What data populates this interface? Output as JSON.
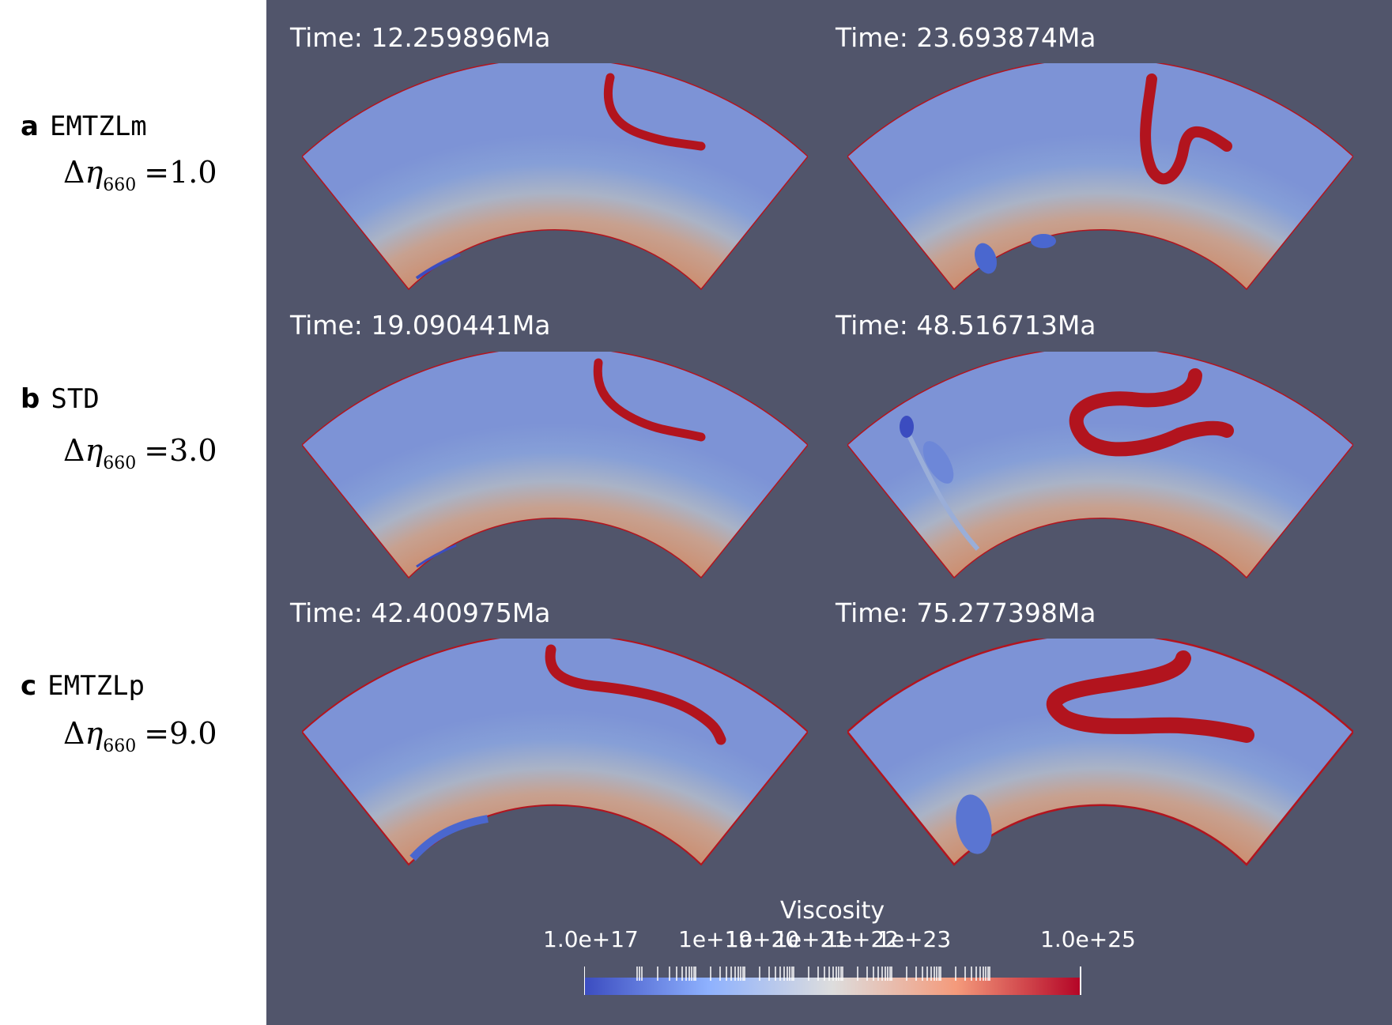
{
  "cases": [
    {
      "letter": "a",
      "name": "EMTZLm",
      "formula": {
        "delta": "Δ",
        "eta": "η",
        "sub": "660",
        "rhs": "=1.0"
      }
    },
    {
      "letter": "b",
      "name": "STD",
      "formula": {
        "delta": "Δ",
        "eta": "η",
        "sub": "660",
        "rhs": "=3.0"
      }
    },
    {
      "letter": "c",
      "name": "EMTZLp",
      "formula": {
        "delta": "Δ",
        "eta": "η",
        "sub": "660",
        "rhs": "=9.0"
      }
    }
  ],
  "times": [
    "Time: 12.259896Ma",
    "Time: 23.693874Ma",
    "Time: 19.090441Ma",
    "Time: 48.516713Ma",
    "Time: 42.400975Ma",
    "Time: 75.277398Ma"
  ],
  "colorbar": {
    "title": "Viscosity",
    "ticks": [
      "1.0e+17",
      "1e+19",
      "1e+20",
      "1e+21",
      "1e+22",
      "1e+23",
      "1.0e+25"
    ],
    "colors": {
      "low": "#3b4cc0",
      "mid": "#dddddd",
      "high": "#b40426"
    }
  },
  "colors": {
    "background": "#51556b",
    "slab": "#b2141e",
    "mantle": "#c98668"
  }
}
